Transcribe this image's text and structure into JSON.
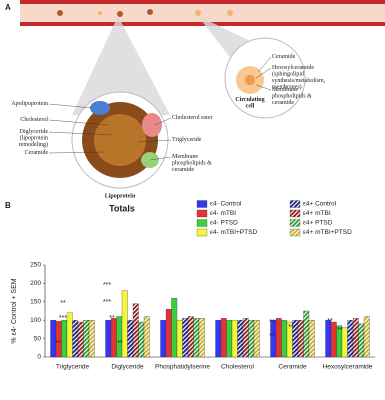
{
  "panel_a": {
    "label": "A",
    "lipoprotein_labels": [
      [
        "Apolipoprotein"
      ],
      [
        "Cholesterol"
      ],
      [
        "Diglyceride",
        "(lipoprotein",
        "remodeling)"
      ],
      [
        "Ceramide"
      ],
      [
        "Cholesterol ester"
      ],
      [
        "Triglyceride"
      ],
      [
        "Membrane",
        "phospholipids &",
        "ceramide"
      ]
    ],
    "lipoprotein_title": "Lipoprotein",
    "cell_labels": [
      [
        "Ceramide"
      ],
      [
        "Hexosylceramide",
        "(sphingolipid",
        "synthesis/metabolism,",
        "membranes)"
      ],
      [
        "Membrane",
        "phospholipids &",
        "ceramide"
      ]
    ],
    "cell_title": [
      "Circulating",
      "cell"
    ]
  },
  "chart_data": {
    "type": "bar",
    "panel_label": "B",
    "title": "Totals",
    "y_label": "% ε4- Control + SEM",
    "categories": [
      "Triglyceride",
      "Diglyceride",
      "Phosphatidylserine",
      "Cholesterol",
      "Ceramide",
      "Hexosylceramide"
    ],
    "series": [
      {
        "name": "ε4- Control",
        "color": "#3535f5",
        "hatch": false,
        "values": [
          100,
          100,
          100,
          100,
          100,
          100
        ]
      },
      {
        "name": "ε4- mTBI",
        "color": "#e63232",
        "hatch": false,
        "values": [
          97,
          105,
          130,
          105,
          105,
          95
        ]
      },
      {
        "name": "ε4- PTSD",
        "color": "#3ccf3c",
        "hatch": false,
        "values": [
          100,
          110,
          160,
          100,
          100,
          85
        ]
      },
      {
        "name": "ε4- mTBI+PTSD",
        "color": "#f5f53a",
        "hatch": false,
        "values": [
          120,
          180,
          100,
          100,
          95,
          80
        ]
      },
      {
        "name": "ε4+ Control",
        "color": "#1c1c8c",
        "hatch": true,
        "values": [
          100,
          100,
          105,
          100,
          100,
          100
        ]
      },
      {
        "name": "ε4+ mTBI",
        "color": "#8c1c1c",
        "hatch": true,
        "values": [
          95,
          145,
          110,
          105,
          100,
          105
        ]
      },
      {
        "name": "ε4+ PTSD",
        "color": "#2a9a2a",
        "hatch": true,
        "values": [
          100,
          95,
          105,
          100,
          125,
          90
        ]
      },
      {
        "name": "ε4+ mTBI+PTSD",
        "color": "#c8b020",
        "hatch": true,
        "values": [
          100,
          110,
          105,
          100,
          100,
          110
        ]
      }
    ],
    "ylim": [
      0,
      250
    ],
    "yticks": [
      0,
      50,
      100,
      150,
      200,
      250
    ],
    "annotations": [
      "**",
      "***",
      "**",
      "***",
      "***",
      "**",
      "**",
      "**",
      "**",
      "**",
      "**",
      "**",
      "**"
    ]
  }
}
